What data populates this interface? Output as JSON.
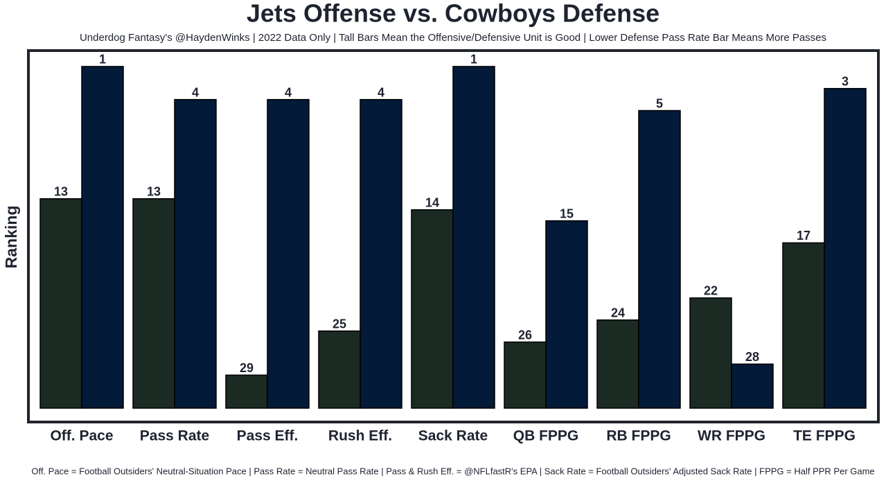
{
  "chart_data": {
    "type": "bar",
    "title": "Jets Offense vs. Cowboys Defense",
    "subtitle": "Underdog Fantasy's @HaydenWinks | 2022 Data Only | Tall Bars Mean the Offensive/Defensive Unit is Good | Lower Defense Pass Rate Bar Means More Passes",
    "y_label": "Ranking",
    "footnote": "Off. Pace = Football Outsiders' Neutral-Situation Pace | Pass Rate = Neutral Pass Rate | Pass & Rush Eff. = @NFLfastR's EPA | Sack Rate = Football Outsiders' Adjusted Sack Rate | FPPG = Half PPR Per Game",
    "categories": [
      "Off. Pace",
      "Pass Rate",
      "Pass Eff.",
      "Rush Eff.",
      "Sack Rate",
      "QB FPPG",
      "RB FPPG",
      "WR FPPG",
      "TE FPPG"
    ],
    "series": [
      {
        "color": "#1c2a24",
        "values": [
          13,
          13,
          29,
          25,
          14,
          26,
          24,
          22,
          17
        ]
      },
      {
        "color": "#031a38",
        "values": [
          1,
          4,
          4,
          4,
          1,
          15,
          5,
          28,
          3
        ]
      }
    ],
    "ylim": [
      32,
      0
    ]
  }
}
